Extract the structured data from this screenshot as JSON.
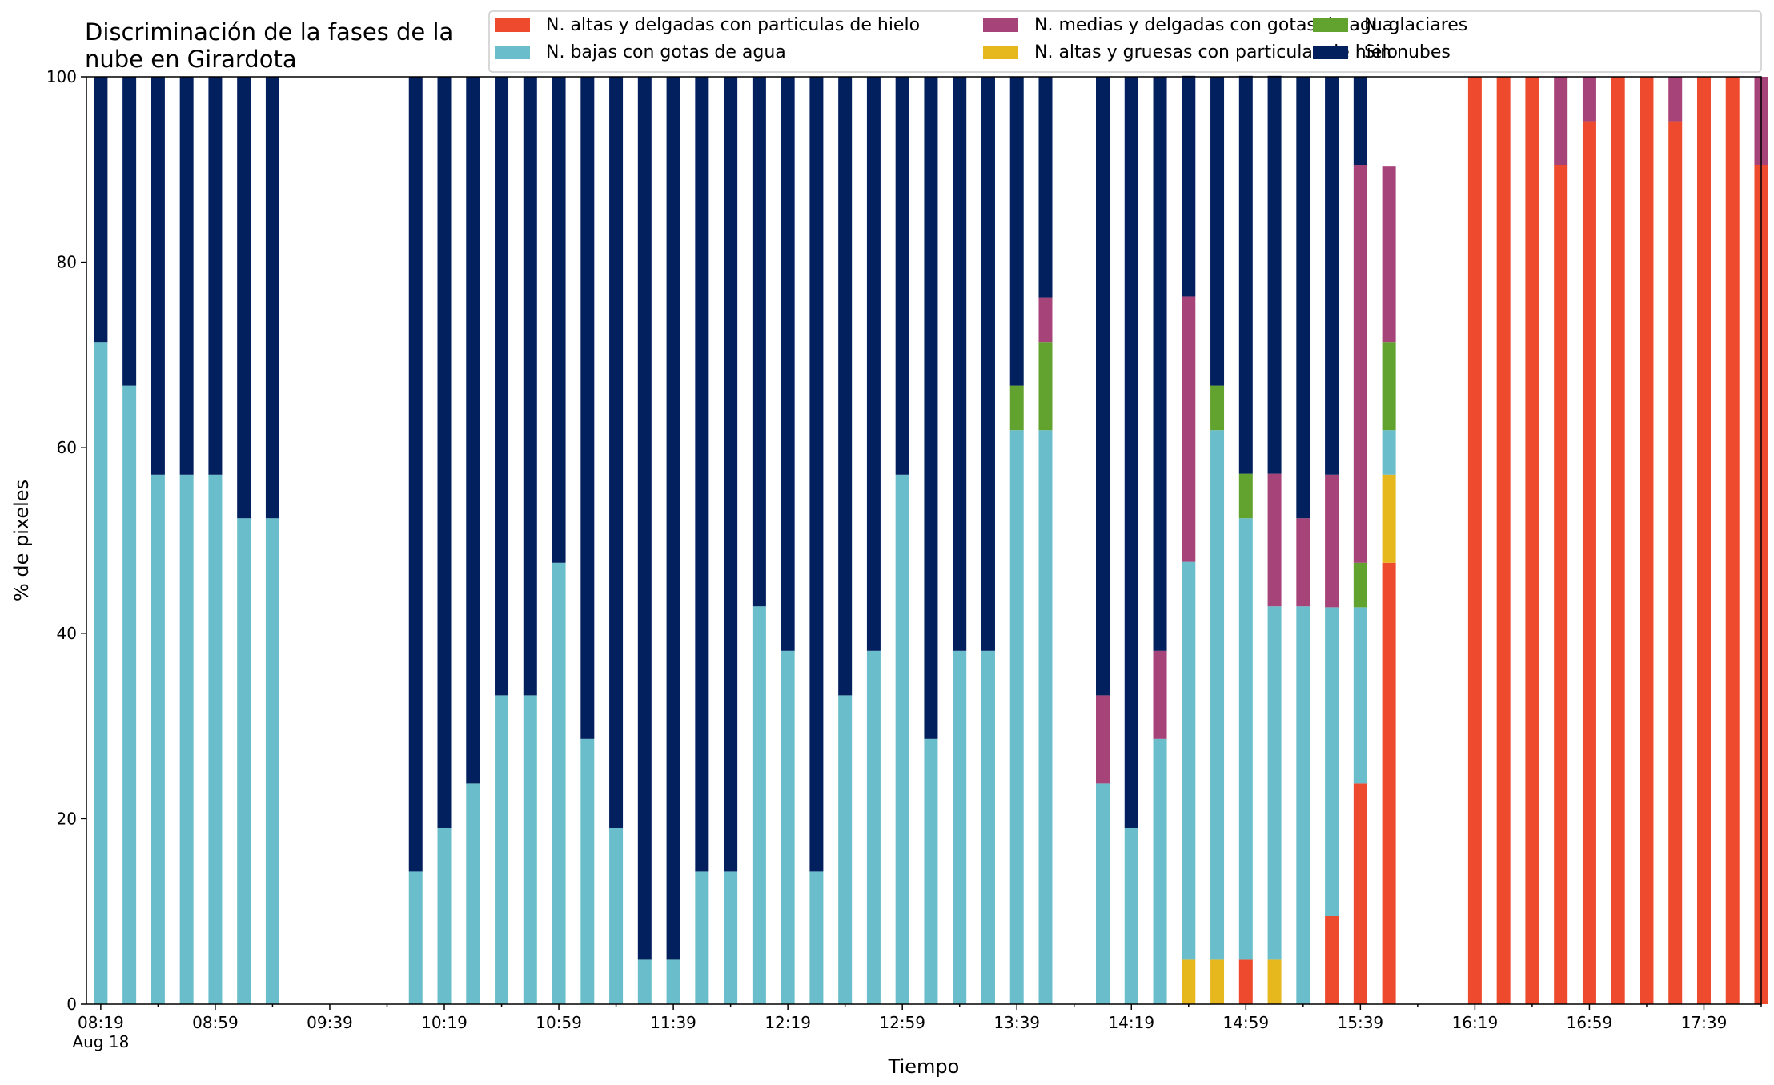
{
  "chart_data": {
    "type": "bar",
    "stacked": true,
    "title": [
      "Discriminación de la fases de la",
      "nube en Girardota"
    ],
    "xlabel": "Tiempo",
    "ylabel": "% de pixeles",
    "ylim": [
      0,
      100
    ],
    "yticks": [
      0,
      20,
      40,
      60,
      80,
      100
    ],
    "xlim": [
      0,
      58.5
    ],
    "xtick_labels": [
      {
        "index": 0,
        "label": "08:19",
        "sublabel": "Aug 18"
      },
      {
        "index": 4,
        "label": "08:59"
      },
      {
        "index": 8,
        "label": "09:39"
      },
      {
        "index": 12,
        "label": "10:19"
      },
      {
        "index": 16,
        "label": "10:59"
      },
      {
        "index": 20,
        "label": "11:39"
      },
      {
        "index": 24,
        "label": "12:19"
      },
      {
        "index": 28,
        "label": "12:59"
      },
      {
        "index": 32,
        "label": "13:39"
      },
      {
        "index": 36,
        "label": "14:19"
      },
      {
        "index": 40,
        "label": "14:59"
      },
      {
        "index": 44,
        "label": "15:39"
      },
      {
        "index": 48,
        "label": "16:19"
      },
      {
        "index": 52,
        "label": "16:59"
      },
      {
        "index": 56,
        "label": "17:39"
      }
    ],
    "legend_position": "top",
    "legend_order": [
      0,
      2,
      4,
      1,
      3,
      5
    ],
    "series": [
      {
        "name": "N. altas y delgadas con particulas de hielo",
        "color": "#EE4A2E",
        "values": [
          0,
          0,
          0,
          0,
          0,
          0,
          0,
          0,
          0,
          0,
          0,
          0,
          0,
          0,
          0,
          0,
          0,
          0,
          0,
          0,
          0,
          0,
          0,
          0,
          0,
          0,
          0,
          0,
          0,
          0,
          0,
          0,
          0,
          0,
          0,
          0,
          0,
          0,
          0,
          0,
          4.8,
          0,
          0,
          9.5,
          23.8,
          47.6,
          0,
          0,
          100,
          100,
          100,
          90.5,
          95.2,
          100,
          100,
          95.2,
          100,
          100,
          90.5
        ]
      },
      {
        "name": "N. altas y gruesas con particulas de hielo",
        "color": "#E6B81E",
        "values": [
          0,
          0,
          0,
          0,
          0,
          0,
          0,
          0,
          0,
          0,
          0,
          0,
          0,
          0,
          0,
          0,
          0,
          0,
          0,
          0,
          0,
          0,
          0,
          0,
          0,
          0,
          0,
          0,
          0,
          0,
          0,
          0,
          0,
          0,
          0,
          0,
          0,
          0,
          4.8,
          4.8,
          0,
          4.8,
          0,
          0,
          0,
          9.5,
          0,
          0,
          0,
          0,
          0,
          0,
          0,
          0,
          0,
          0,
          0,
          0,
          0
        ]
      },
      {
        "name": "N. bajas con gotas de agua",
        "color": "#6ABECB",
        "values": [
          71.4,
          66.7,
          57.1,
          57.1,
          57.1,
          52.4,
          52.4,
          0,
          0,
          0,
          0,
          14.3,
          19.0,
          23.8,
          33.3,
          33.3,
          47.6,
          28.6,
          19.0,
          4.8,
          4.8,
          14.3,
          14.3,
          42.9,
          38.1,
          14.3,
          33.3,
          38.1,
          57.1,
          28.6,
          38.1,
          38.1,
          61.9,
          61.9,
          0,
          23.8,
          19.0,
          28.6,
          42.9,
          57.1,
          47.6,
          38.1,
          42.9,
          33.3,
          19.0,
          4.8,
          0,
          0,
          0,
          0,
          0,
          0,
          0,
          0,
          0,
          0,
          0,
          0,
          0
        ]
      },
      {
        "name": "N. glaciares",
        "color": "#62A22E",
        "values": [
          0,
          0,
          0,
          0,
          0,
          0,
          0,
          0,
          0,
          0,
          0,
          0,
          0,
          0,
          0,
          0,
          0,
          0,
          0,
          0,
          0,
          0,
          0,
          0,
          0,
          0,
          0,
          0,
          0,
          0,
          0,
          0,
          4.8,
          9.5,
          0,
          0,
          0,
          0,
          0,
          4.8,
          4.8,
          0,
          0,
          0,
          4.8,
          9.5,
          0,
          0,
          0,
          0,
          0,
          0,
          0,
          0,
          0,
          0,
          0,
          0,
          0
        ]
      },
      {
        "name": "N. medias y delgadas con gotas de agua",
        "color": "#A64379",
        "values": [
          0,
          0,
          0,
          0,
          0,
          0,
          0,
          0,
          0,
          0,
          0,
          0,
          0,
          0,
          0,
          0,
          0,
          0,
          0,
          0,
          0,
          0,
          0,
          0,
          0,
          0,
          0,
          0,
          0,
          0,
          0,
          0,
          0,
          4.8,
          0,
          9.5,
          0,
          9.5,
          28.6,
          0,
          0,
          14.3,
          9.5,
          14.3,
          42.9,
          19.0,
          0,
          0,
          0,
          0,
          0,
          9.5,
          4.8,
          0,
          0,
          4.8,
          0,
          0,
          9.5
        ]
      },
      {
        "name": "Sin nubes",
        "color": "#021F5E",
        "values": [
          28.6,
          33.3,
          42.9,
          42.9,
          42.9,
          47.6,
          47.6,
          0,
          0,
          0,
          0,
          85.7,
          81.0,
          76.2,
          66.7,
          66.7,
          52.4,
          71.4,
          81.0,
          95.2,
          95.2,
          85.7,
          85.7,
          57.1,
          61.9,
          85.7,
          66.7,
          61.9,
          42.9,
          71.4,
          61.9,
          61.9,
          33.3,
          23.8,
          0,
          66.7,
          81.0,
          61.9,
          23.8,
          33.3,
          42.9,
          42.9,
          47.6,
          42.9,
          9.5,
          0,
          0,
          0,
          0,
          0,
          0,
          0,
          0,
          0,
          0,
          0,
          0,
          0,
          0
        ]
      }
    ]
  }
}
